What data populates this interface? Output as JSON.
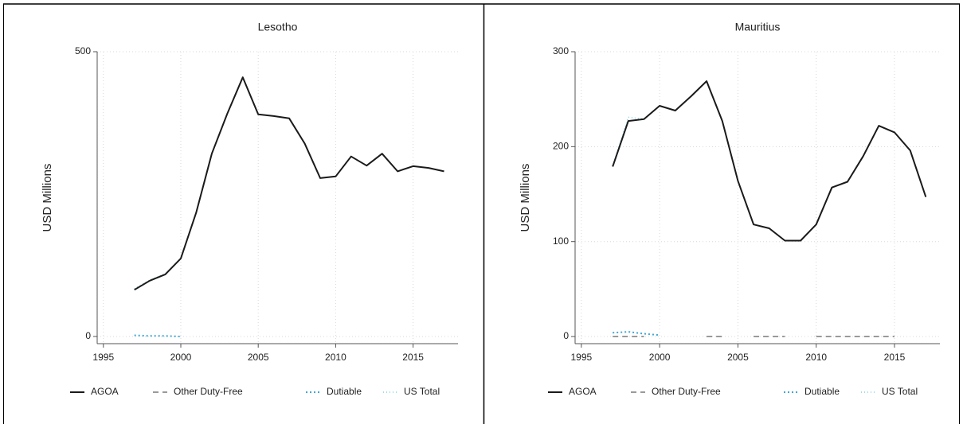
{
  "chart_data": [
    {
      "type": "line",
      "title": "Lesotho",
      "y_label": "USD Millions",
      "x": [
        1997,
        1998,
        1999,
        2000,
        2001,
        2002,
        2003,
        2004,
        2005,
        2006,
        2007,
        2008,
        2009,
        2010,
        2011,
        2012,
        2013,
        2014,
        2015,
        2016,
        2017
      ],
      "series": [
        {
          "name": "AGOA",
          "color": "#1a1a1a",
          "style": "solid",
          "values": [
            82,
            98,
            109,
            137,
            218,
            321,
            391,
            455,
            390,
            387,
            383,
            339,
            278,
            281,
            316,
            300,
            321,
            290,
            299,
            296,
            290
          ]
        },
        {
          "name": "Other Duty-Free",
          "color": "#9a9a9a",
          "style": "dashed",
          "values": [
            null,
            null,
            null,
            null,
            null,
            null,
            null,
            null,
            null,
            null,
            null,
            null,
            null,
            null,
            null,
            null,
            null,
            null,
            null,
            null,
            null
          ]
        },
        {
          "name": "Dutiable",
          "color": "#3fa7d6",
          "style": "dotted",
          "values": [
            2,
            1,
            1,
            0,
            null,
            null,
            null,
            null,
            null,
            null,
            null,
            null,
            null,
            null,
            null,
            null,
            null,
            null,
            null,
            null,
            null
          ]
        },
        {
          "name": "US Total",
          "color": "#7fd0e8",
          "style": "finedot",
          "values": [
            84,
            99,
            110,
            137,
            218,
            321,
            391,
            455,
            390,
            387,
            383,
            339,
            278,
            281,
            316,
            300,
            321,
            290,
            299,
            296,
            290
          ]
        }
      ],
      "xlim": [
        1994.6,
        2017.9
      ],
      "ylim": [
        -12.6,
        500
      ],
      "xticks": [
        1995,
        2000,
        2005,
        2010,
        2015
      ],
      "yticks": [
        0,
        500
      ],
      "grid": true,
      "legend": "bottom"
    },
    {
      "type": "line",
      "title": "Mauritius",
      "y_label": "USD Millions",
      "x": [
        1997,
        1998,
        1999,
        2000,
        2001,
        2002,
        2003,
        2004,
        2005,
        2006,
        2007,
        2008,
        2009,
        2010,
        2011,
        2012,
        2013,
        2014,
        2015,
        2016,
        2017
      ],
      "series": [
        {
          "name": "AGOA",
          "color": "#1a1a1a",
          "style": "solid",
          "values": [
            179,
            227,
            229,
            243,
            238,
            253,
            269,
            227,
            164,
            118,
            114,
            101,
            101,
            118,
            157,
            163,
            190,
            222,
            215,
            196,
            147
          ]
        },
        {
          "name": "Other Duty-Free",
          "color": "#9a9a9a",
          "style": "dashed",
          "values": [
            0,
            0,
            0,
            null,
            null,
            null,
            0,
            0,
            null,
            0,
            0,
            0,
            null,
            0,
            0,
            0,
            0,
            0,
            0,
            null,
            null
          ]
        },
        {
          "name": "Dutiable",
          "color": "#3fa7d6",
          "style": "dotted",
          "values": [
            4,
            5,
            3,
            1.5,
            null,
            null,
            null,
            null,
            null,
            null,
            null,
            null,
            null,
            null,
            null,
            null,
            null,
            null,
            null,
            null,
            null
          ]
        },
        {
          "name": "US Total",
          "color": "#7fd0e8",
          "style": "finedot",
          "values": [
            180,
            231,
            229,
            243,
            238,
            253,
            269,
            227,
            164,
            118,
            114,
            101,
            101,
            118,
            157,
            163,
            190,
            222,
            215,
            196,
            147
          ]
        }
      ],
      "xlim": [
        1994.6,
        2017.9
      ],
      "ylim": [
        -7.5,
        300
      ],
      "xticks": [
        1995,
        2000,
        2005,
        2010,
        2015
      ],
      "yticks": [
        0,
        100,
        200,
        300
      ],
      "grid": true,
      "legend": "bottom"
    }
  ]
}
